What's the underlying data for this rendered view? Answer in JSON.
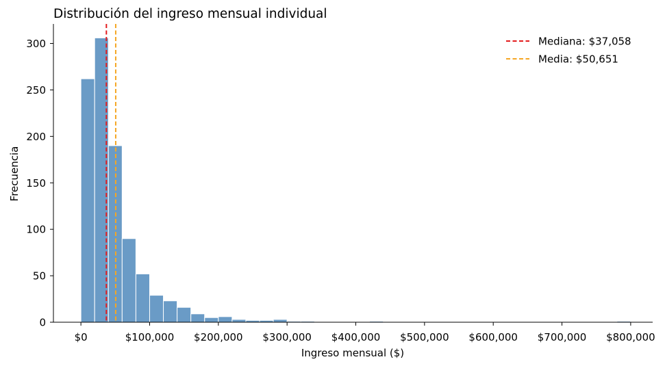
{
  "chart_data": {
    "type": "bar",
    "title": "Distribución del ingreso mensual individual",
    "xlabel": "Ingreso mensual ($)",
    "ylabel": "Frecuencia",
    "xlim": [
      -40000,
      832000
    ],
    "ylim": [
      0,
      321
    ],
    "bin_width": 20000,
    "bin_start": 0,
    "frequencies": [
      262,
      306,
      190,
      90,
      52,
      29,
      23,
      16,
      9,
      5,
      6,
      3,
      2,
      2,
      3,
      1,
      1,
      0,
      0,
      0,
      0,
      1,
      0,
      0,
      0,
      0,
      0,
      0,
      0,
      0,
      0,
      0,
      0,
      0,
      0,
      0,
      0,
      0,
      0,
      1
    ],
    "x_ticks": [
      0,
      100000,
      200000,
      300000,
      400000,
      500000,
      600000,
      700000,
      800000
    ],
    "x_tick_labels": [
      "$0",
      "$100,000",
      "$200,000",
      "$300,000",
      "$400,000",
      "$500,000",
      "$600,000",
      "$700,000",
      "$800,000"
    ],
    "y_ticks": [
      0,
      50,
      100,
      150,
      200,
      250,
      300
    ],
    "y_tick_labels": [
      "0",
      "50",
      "100",
      "150",
      "200",
      "250",
      "300"
    ],
    "bar_color": "#6a9bc6",
    "reference_lines": [
      {
        "label": "Mediana: $37,058",
        "value": 37058,
        "color": "#e31a1c"
      },
      {
        "label": "Media: $50,651",
        "value": 50651,
        "color": "#f5a623"
      }
    ],
    "legend_position": "top-right",
    "grid": false
  }
}
